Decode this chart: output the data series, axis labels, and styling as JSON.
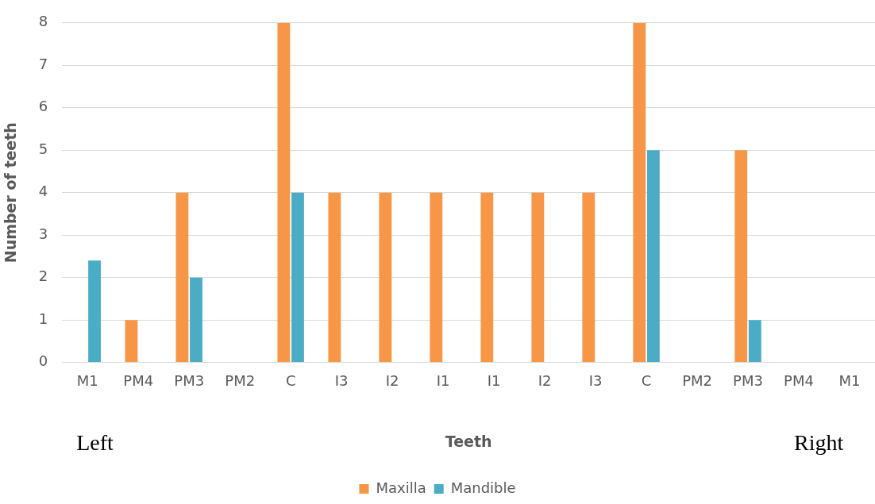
{
  "chart_data": {
    "type": "bar",
    "xlabel": "Teeth",
    "ylabel": "Number of teeth",
    "categories": [
      "M1",
      "PM4",
      "PM3",
      "PM2",
      "C",
      "I3",
      "I2",
      "I1",
      "I1",
      "I2",
      "I3",
      "C",
      "PM2",
      "PM3",
      "PM4",
      "M1"
    ],
    "series": [
      {
        "name": "Maxilla",
        "color": "#f79646",
        "values": [
          0,
          1,
          4,
          0,
          8,
          4,
          4,
          4,
          4,
          4,
          4,
          8,
          0,
          5,
          0,
          0
        ]
      },
      {
        "name": "Mandible",
        "color": "#4bacc6",
        "values": [
          2.4,
          0,
          2,
          null,
          4,
          0,
          0,
          0,
          0,
          0,
          0,
          5,
          null,
          1,
          0,
          0
        ]
      }
    ],
    "ylim": [
      0,
      8
    ],
    "yticks": [
      0,
      1,
      2,
      3,
      4,
      5,
      6,
      7,
      8
    ],
    "grid": "y",
    "legend": "bottom",
    "annotations": [
      "Left",
      "Right"
    ]
  }
}
